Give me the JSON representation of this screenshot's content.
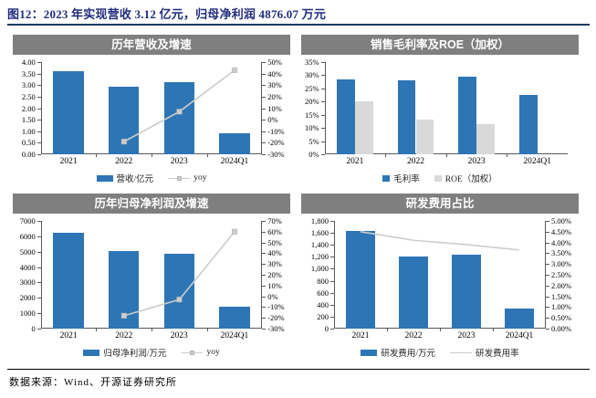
{
  "title": "图12：2023 年实现营收 3.12 亿元，归母净利润 4876.07 万元",
  "source": "数据来源：Wind、开源证券研究所",
  "colors": {
    "title_navy": "#222C7E",
    "rule_navy": "#17375E",
    "header_bg": "#7F7F7F",
    "header_text": "#FFFFFF",
    "bar_blue": "#2E75B6",
    "bar_gray": "#D9D9D9",
    "line_gray": "#CCCCCC",
    "axis_line": "#595959"
  },
  "panels": [
    {
      "header": "历年营收及增速"
    },
    {
      "header": "销售毛利率及ROE（加权）"
    },
    {
      "header": "历年归母净利润及增速"
    },
    {
      "header": "研发费用占比"
    }
  ],
  "chart_data": [
    {
      "type": "bar",
      "title": "历年营收及增速",
      "categories": [
        "2021",
        "2022",
        "2023",
        "2024Q1"
      ],
      "series": [
        {
          "name": "营收/亿元",
          "type": "bar",
          "axis": "left",
          "color": "#2E75B6",
          "values": [
            3.6,
            2.93,
            3.12,
            0.92
          ]
        },
        {
          "name": "yoy",
          "type": "line",
          "axis": "right",
          "color": "#CCCCCC",
          "marker": true,
          "values": [
            null,
            -19,
            7,
            43
          ]
        }
      ],
      "left_axis": {
        "min": 0,
        "max": 4,
        "step": 0.5,
        "format": "fixed2"
      },
      "right_axis": {
        "min": -30,
        "max": 50,
        "step": 10,
        "format": "pct"
      },
      "grid": false,
      "legend_position": "bottom"
    },
    {
      "type": "bar",
      "title": "销售毛利率及ROE（加权）",
      "categories": [
        "2021",
        "2022",
        "2023",
        "2024Q1"
      ],
      "series": [
        {
          "name": "毛利率",
          "type": "bar",
          "axis": "left",
          "color": "#2E75B6",
          "values": [
            28.5,
            28.0,
            29.5,
            22.5
          ]
        },
        {
          "name": "ROE（加权）",
          "type": "bar",
          "axis": "left",
          "color": "#D9D9D9",
          "values": [
            20.0,
            13.0,
            11.5,
            null
          ]
        }
      ],
      "left_axis": {
        "min": 0,
        "max": 35,
        "step": 5,
        "format": "pct"
      },
      "right_axis": null,
      "grid": false,
      "legend_position": "bottom"
    },
    {
      "type": "bar",
      "title": "历年归母净利润及增速",
      "categories": [
        "2021",
        "2022",
        "2023",
        "2024Q1"
      ],
      "series": [
        {
          "name": "归母净利润/万元",
          "type": "bar",
          "axis": "left",
          "color": "#2E75B6",
          "values": [
            6200,
            5050,
            4876,
            1450
          ]
        },
        {
          "name": "yoy",
          "type": "line",
          "axis": "right",
          "color": "#CCCCCC",
          "marker": true,
          "values": [
            null,
            -18,
            -3,
            60
          ]
        }
      ],
      "left_axis": {
        "min": 0,
        "max": 7000,
        "step": 1000,
        "format": "int"
      },
      "right_axis": {
        "min": -30,
        "max": 70,
        "step": 10,
        "format": "pct"
      },
      "grid": false,
      "legend_position": "bottom"
    },
    {
      "type": "bar",
      "title": "研发费用占比",
      "categories": [
        "2021",
        "2022",
        "2023",
        "2024Q1"
      ],
      "series": [
        {
          "name": "研发费用/万元",
          "type": "bar",
          "axis": "left",
          "color": "#2E75B6",
          "values": [
            1630,
            1210,
            1230,
            330
          ]
        },
        {
          "name": "研发费用率",
          "type": "line",
          "axis": "right",
          "color": "#CCCCCC",
          "marker": false,
          "values": [
            4.5,
            4.1,
            3.9,
            3.65
          ]
        }
      ],
      "left_axis": {
        "min": 0,
        "max": 1800,
        "step": 200,
        "format": "thousands"
      },
      "right_axis": {
        "min": 0,
        "max": 5,
        "step": 0.5,
        "format": "pct2"
      },
      "grid": false,
      "legend_position": "bottom"
    }
  ]
}
